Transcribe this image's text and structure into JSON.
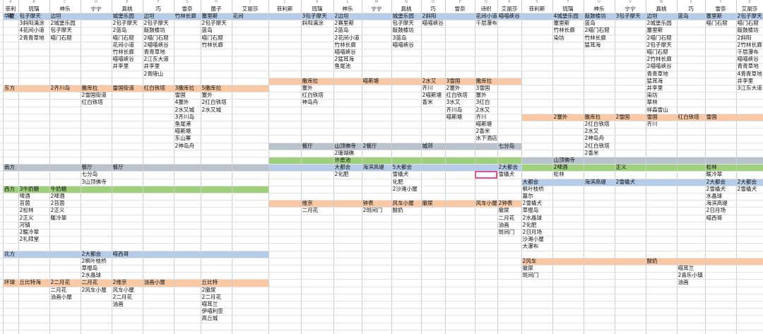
{
  "colors": {
    "blue": "#b6cdea",
    "orange": "#f8c9a4",
    "gray": "#b9c3cd",
    "green": "#9fd07c",
    "selection": "#e0559a"
  },
  "column_letters": [
    "A",
    "B",
    "C",
    "D",
    "E",
    "F",
    "G",
    "H",
    "I",
    "J",
    "K",
    "L",
    "M",
    "N",
    "O",
    "P",
    "Q",
    "R",
    "S",
    "T",
    "U",
    "V",
    "W",
    "X",
    "Y",
    "Z"
  ],
  "headers": [
    "菲利斯",
    "琉璃",
    "神乐",
    "宁宁",
    "真桃",
    "巧",
    "雪奈",
    "菌子",
    "艾丽莎",
    "菲利斯",
    "琉璃",
    "神乐",
    "宁宁",
    "真桃",
    "巧",
    "雪奈",
    "诗织",
    "艾丽莎",
    "菲利斯",
    "琉璃",
    "神乐",
    "宁宁",
    "真桃",
    "巧",
    "雪奈",
    "艾丽莎"
  ],
  "region_labels": [
    {
      "r": 1,
      "text": "华夏"
    },
    {
      "r": 11,
      "text": "东方"
    },
    {
      "r": 22,
      "text": "南方"
    },
    {
      "r": 25,
      "text": "西方"
    },
    {
      "r": 34,
      "text": "北方"
    },
    {
      "r": 38,
      "text": "环球"
    }
  ],
  "cells": [
    {
      "c": 1,
      "r": 1,
      "t": "包子摩天"
    },
    {
      "c": 2,
      "r": 1,
      "t": "边坦"
    },
    {
      "c": 4,
      "r": 1,
      "t": "城堡乐园"
    },
    {
      "c": 5,
      "r": 1,
      "t": "边坦"
    },
    {
      "c": 6,
      "r": 1,
      "t": "竹林长廊"
    },
    {
      "c": 7,
      "r": 1,
      "t": "塞里斯"
    },
    {
      "c": 8,
      "r": 1,
      "t": "花间"
    },
    {
      "c": 1,
      "r": 2,
      "t": "3斜阳漓涂"
    },
    {
      "c": 2,
      "r": 2,
      "t": "2城堡乐园"
    },
    {
      "c": 4,
      "r": 2,
      "t": "2包子摩天"
    },
    {
      "c": 5,
      "r": 2,
      "t": "2包子摩天"
    },
    {
      "c": 7,
      "r": 2,
      "t": "2包子摩天"
    },
    {
      "c": 1,
      "r": 3,
      "t": "4花间小道"
    },
    {
      "c": 2,
      "r": 3,
      "t": "包子摩天"
    },
    {
      "c": 4,
      "r": 3,
      "t": "2蓝岛"
    },
    {
      "c": 5,
      "r": 3,
      "t": "敲鼓楼坊"
    },
    {
      "c": 7,
      "r": 3,
      "t": "蓝岛"
    },
    {
      "c": 1,
      "r": 4,
      "t": "2青青草地"
    },
    {
      "c": 2,
      "r": 4,
      "t": "喵门石窟"
    },
    {
      "c": 4,
      "r": 4,
      "t": "喵门石窟"
    },
    {
      "c": 5,
      "r": 4,
      "t": "2喵门石窟"
    },
    {
      "c": 7,
      "r": 4,
      "t": "喵门石窟"
    },
    {
      "c": 4,
      "r": 5,
      "t": "花间小道"
    },
    {
      "c": 5,
      "r": 5,
      "t": "2喵喵峡谷"
    },
    {
      "c": 7,
      "r": 5,
      "t": "竹林长廊"
    },
    {
      "c": 4,
      "r": 6,
      "t": "竹林长廊"
    },
    {
      "c": 5,
      "r": 6,
      "t": "青青草地"
    },
    {
      "c": 4,
      "r": 7,
      "t": "喵喵峡谷"
    },
    {
      "c": 5,
      "r": 7,
      "t": "2江东大道"
    },
    {
      "c": 4,
      "r": 8,
      "t": "井李里"
    },
    {
      "c": 5,
      "r": 8,
      "t": "井李里"
    },
    {
      "c": 5,
      "r": 9,
      "t": "2青陵山"
    },
    {
      "c": 2,
      "r": 11,
      "t": "2齐川岛"
    },
    {
      "c": 3,
      "r": 11,
      "t": "撒库拉"
    },
    {
      "c": 4,
      "r": 11,
      "t": "雷国街道"
    },
    {
      "c": 5,
      "r": 11,
      "t": "红白铁塔"
    },
    {
      "c": 6,
      "r": 11,
      "t": "3撒库拉"
    },
    {
      "c": 7,
      "r": 11,
      "t": "5撒库拉"
    },
    {
      "c": 3,
      "r": 12,
      "t": "2雪国街道"
    },
    {
      "c": 6,
      "r": 12,
      "t": "雪国"
    },
    {
      "c": 7,
      "r": 12,
      "t": "塞外"
    },
    {
      "c": 3,
      "r": 13,
      "t": "红白铁塔"
    },
    {
      "c": 6,
      "r": 13,
      "t": "4塞外"
    },
    {
      "c": 7,
      "r": 13,
      "t": "2红白铁塔"
    },
    {
      "c": 6,
      "r": 14,
      "t": "2水又城"
    },
    {
      "c": 7,
      "r": 14,
      "t": "2水又城"
    },
    {
      "c": 6,
      "r": 15,
      "t": "3齐川岛"
    },
    {
      "c": 6,
      "r": 16,
      "t": "鱼尾港"
    },
    {
      "c": 6,
      "r": 17,
      "t": "喵斯塘"
    },
    {
      "c": 6,
      "r": 18,
      "t": "东山寨"
    },
    {
      "c": 6,
      "r": 19,
      "t": "2神岛舟"
    },
    {
      "c": 3,
      "r": 22,
      "t": "餐厅"
    },
    {
      "c": 4,
      "r": 22,
      "t": "餐厅"
    },
    {
      "c": 3,
      "r": 23,
      "t": "七分岛"
    },
    {
      "c": 3,
      "r": 24,
      "t": "3山顶佛寺"
    },
    {
      "c": 1,
      "r": 25,
      "t": "3牛奶糖"
    },
    {
      "c": 2,
      "r": 25,
      "t": "牛奶糖"
    },
    {
      "c": 1,
      "r": 26,
      "t": "啤酒"
    },
    {
      "c": 2,
      "r": 26,
      "t": "2啤酒"
    },
    {
      "c": 1,
      "r": 27,
      "t": "苔茵"
    },
    {
      "c": 2,
      "r": 27,
      "t": "2苔茵"
    },
    {
      "c": 1,
      "r": 28,
      "t": "2松林"
    },
    {
      "c": 2,
      "r": 28,
      "t": "2正义"
    },
    {
      "c": 1,
      "r": 29,
      "t": "2正义"
    },
    {
      "c": 2,
      "r": 29,
      "t": "暖冷翠"
    },
    {
      "c": 1,
      "r": 30,
      "t": "河镇"
    },
    {
      "c": 1,
      "r": 31,
      "t": "2暖冷翠"
    },
    {
      "c": 1,
      "r": 32,
      "t": "2礼拜堂"
    },
    {
      "c": 3,
      "r": 34,
      "t": "2大都会"
    },
    {
      "c": 4,
      "r": 34,
      "t": "喵西哥"
    },
    {
      "c": 3,
      "r": 35,
      "t": "2枫叶枝桥"
    },
    {
      "c": 3,
      "r": 36,
      "t": "草棍岛"
    },
    {
      "c": 3,
      "r": 37,
      "t": "2水晶球"
    },
    {
      "c": 1,
      "r": 38,
      "t": "丘比特海"
    },
    {
      "c": 2,
      "r": 38,
      "t": "2二月花"
    },
    {
      "c": 3,
      "r": 38,
      "t": "二月花"
    },
    {
      "c": 4,
      "r": 38,
      "t": "2维京"
    },
    {
      "c": 5,
      "r": 38,
      "t": "油画小屋"
    },
    {
      "c": 7,
      "r": 38,
      "t": "丘比特"
    },
    {
      "c": 2,
      "r": 39,
      "t": "二月花"
    },
    {
      "c": 3,
      "r": 39,
      "t": "2风车小屋"
    },
    {
      "c": 4,
      "r": 39,
      "t": "风车小屋"
    },
    {
      "c": 7,
      "r": 39,
      "t": "2撤尿"
    },
    {
      "c": 2,
      "r": 40,
      "t": "油画小屋"
    },
    {
      "c": 4,
      "r": 40,
      "t": "2二月花"
    },
    {
      "c": 7,
      "r": 40,
      "t": "2二月花"
    },
    {
      "c": 4,
      "r": 41,
      "t": "油画"
    },
    {
      "c": 7,
      "r": 41,
      "t": "喵耳兰"
    },
    {
      "c": 7,
      "r": 42,
      "t": "伊喵利亚"
    },
    {
      "c": 7,
      "r": 43,
      "t": "高丘城"
    },
    {
      "c": 10,
      "r": 1,
      "t": "3包子摩天"
    },
    {
      "c": 11,
      "r": 1,
      "t": "2边坦"
    },
    {
      "c": 13,
      "r": 1,
      "t": "城堡乐园"
    },
    {
      "c": 14,
      "r": 1,
      "t": "2斜阳"
    },
    {
      "c": 16,
      "r": 1,
      "t": "花间小道"
    },
    {
      "c": 17,
      "r": 1,
      "t": "喵喵峡谷"
    },
    {
      "c": 10,
      "r": 2,
      "t": "斜阳漓涂"
    },
    {
      "c": 11,
      "r": 2,
      "t": "2赛里斯"
    },
    {
      "c": 13,
      "r": 2,
      "t": "包子摩天"
    },
    {
      "c": 14,
      "r": 2,
      "t": "喵喵峡谷"
    },
    {
      "c": 16,
      "r": 2,
      "t": "千层瀑布"
    },
    {
      "c": 11,
      "r": 3,
      "t": "2蓝岛"
    },
    {
      "c": 13,
      "r": 3,
      "t": "敲鼓楼坊"
    },
    {
      "c": 11,
      "r": 4,
      "t": "2花间小道"
    },
    {
      "c": 13,
      "r": 4,
      "t": "3蓝岛"
    },
    {
      "c": 11,
      "r": 5,
      "t": "竹林长廊"
    },
    {
      "c": 13,
      "r": 5,
      "t": "喵喵峡谷"
    },
    {
      "c": 11,
      "r": 6,
      "t": "喵喵峡谷"
    },
    {
      "c": 11,
      "r": 7,
      "t": "2猛耳海"
    },
    {
      "c": 11,
      "r": 8,
      "t": "鱼尾池"
    },
    {
      "c": 10,
      "r": 10,
      "t": "撒库拉"
    },
    {
      "c": 12,
      "r": 10,
      "t": "喵斯塘"
    },
    {
      "c": 14,
      "r": 10,
      "t": "2水又"
    },
    {
      "c": 15,
      "r": 10,
      "t": "3雪国"
    },
    {
      "c": 16,
      "r": 10,
      "t": "撒库拉"
    },
    {
      "c": 10,
      "r": 11,
      "t": "塞外"
    },
    {
      "c": 14,
      "r": 11,
      "t": "齐川"
    },
    {
      "c": 15,
      "r": 11,
      "t": "2塞外"
    },
    {
      "c": 16,
      "r": 11,
      "t": "3雪国"
    },
    {
      "c": 10,
      "r": 12,
      "t": "红白铁塔"
    },
    {
      "c": 14,
      "r": 12,
      "t": "2喵斯塘"
    },
    {
      "c": 15,
      "r": 12,
      "t": "红白铁塔"
    },
    {
      "c": 16,
      "r": 12,
      "t": "塞外"
    },
    {
      "c": 10,
      "r": 13,
      "t": "神岛舟"
    },
    {
      "c": 14,
      "r": 13,
      "t": "香米"
    },
    {
      "c": 15,
      "r": 13,
      "t": "3水又"
    },
    {
      "c": 16,
      "r": 13,
      "t": "3红白"
    },
    {
      "c": 15,
      "r": 14,
      "t": "齐川岛"
    },
    {
      "c": 16,
      "r": 14,
      "t": "2水又"
    },
    {
      "c": 15,
      "r": 15,
      "t": "喵斯塘"
    },
    {
      "c": 16,
      "r": 15,
      "t": "齐川"
    },
    {
      "c": 16,
      "r": 16,
      "t": "喵斯塘"
    },
    {
      "c": 16,
      "r": 17,
      "t": "2香米"
    },
    {
      "c": 16,
      "r": 18,
      "t": "水下酒店"
    },
    {
      "c": 10,
      "r": 19,
      "t": "餐厅"
    },
    {
      "c": 11,
      "r": 19,
      "t": "山顶佛寺"
    },
    {
      "c": 12,
      "r": 19,
      "t": "2餐厅"
    },
    {
      "c": 14,
      "r": 19,
      "t": "城郊"
    },
    {
      "c": 17,
      "r": 19,
      "t": "七分岛"
    },
    {
      "c": 11,
      "r": 20,
      "t": "2珊瑚礁"
    },
    {
      "c": 11,
      "r": 21,
      "t": "许愿池"
    },
    {
      "c": 11,
      "r": 22,
      "t": "大都会"
    },
    {
      "c": 12,
      "r": 22,
      "t": "海滨高堤"
    },
    {
      "c": 13,
      "r": 22,
      "t": "5大都会"
    },
    {
      "c": 17,
      "r": 22,
      "t": "2大都会"
    },
    {
      "c": 11,
      "r": 23,
      "t": "2化肥"
    },
    {
      "c": 13,
      "r": 23,
      "t": "雪橇犬"
    },
    {
      "c": 17,
      "r": 23,
      "t": "雪橇犬"
    },
    {
      "c": 13,
      "r": 24,
      "t": "化肥"
    },
    {
      "c": 13,
      "r": 25,
      "t": "2沙滩小屋"
    },
    {
      "c": 10,
      "r": 27,
      "t": "维京"
    },
    {
      "c": 12,
      "r": 27,
      "t": "钟表"
    },
    {
      "c": 13,
      "r": 27,
      "t": "风车小屋"
    },
    {
      "c": 14,
      "r": 27,
      "t": "撤尿"
    },
    {
      "c": 16,
      "r": 27,
      "t": "风车小屋"
    },
    {
      "c": 17,
      "r": 27,
      "t": "2钟表"
    },
    {
      "c": 10,
      "r": 28,
      "t": "二月花"
    },
    {
      "c": 12,
      "r": 28,
      "t": "2斑间门"
    },
    {
      "c": 13,
      "r": 28,
      "t": "酸奶"
    },
    {
      "c": 17,
      "r": 28,
      "t": "撤尿"
    },
    {
      "c": 17,
      "r": 29,
      "t": "二月花"
    },
    {
      "c": 17,
      "r": 30,
      "t": "油画"
    },
    {
      "c": 17,
      "r": 31,
      "t": "斑间门"
    },
    {
      "c": 19,
      "r": 1,
      "t": "4城堡乐园"
    },
    {
      "c": 20,
      "r": 1,
      "t": "敲鼓楼坊"
    },
    {
      "c": 21,
      "r": 1,
      "t": "3包子摩天"
    },
    {
      "c": 22,
      "r": 1,
      "t": "边坦"
    },
    {
      "c": 23,
      "r": 1,
      "t": "蓝岛"
    },
    {
      "c": 24,
      "r": 1,
      "t": "塞里斯"
    },
    {
      "c": 25,
      "r": 1,
      "t": "2包子摩天"
    },
    {
      "c": 19,
      "r": 2,
      "t": "塞里斯"
    },
    {
      "c": 20,
      "r": 2,
      "t": "蓝岛"
    },
    {
      "c": 22,
      "r": 2,
      "t": "2城堡乐园"
    },
    {
      "c": 24,
      "r": 2,
      "t": "喵门石窟"
    },
    {
      "c": 25,
      "r": 2,
      "t": "喵门石窟"
    },
    {
      "c": 19,
      "r": 3,
      "t": "竹林长廊"
    },
    {
      "c": 20,
      "r": 3,
      "t": "2喵门石窟"
    },
    {
      "c": 22,
      "r": 3,
      "t": "塞里斯"
    },
    {
      "c": 25,
      "r": 3,
      "t": "敲鼓楼坊"
    },
    {
      "c": 19,
      "r": 4,
      "t": "染坊"
    },
    {
      "c": 20,
      "r": 4,
      "t": "竹林长廊"
    },
    {
      "c": 22,
      "r": 4,
      "t": "2喵门石窟"
    },
    {
      "c": 25,
      "r": 4,
      "t": "2斜阳"
    },
    {
      "c": 20,
      "r": 5,
      "t": "猛耳海"
    },
    {
      "c": 22,
      "r": 5,
      "t": "2包子摩天"
    },
    {
      "c": 25,
      "r": 5,
      "t": "2竹林长廊"
    },
    {
      "c": 22,
      "r": 6,
      "t": "喵门石窟"
    },
    {
      "c": 25,
      "r": 6,
      "t": "千层瀑布"
    },
    {
      "c": 22,
      "r": 7,
      "t": "2竹林长廊"
    },
    {
      "c": 25,
      "r": 7,
      "t": "喵喵峡谷"
    },
    {
      "c": 22,
      "r": 8,
      "t": "2喵喵峡谷"
    },
    {
      "c": 25,
      "r": 8,
      "t": "青青草地"
    },
    {
      "c": 22,
      "r": 9,
      "t": "青青草地"
    },
    {
      "c": 25,
      "r": 9,
      "t": "4青青草地"
    },
    {
      "c": 22,
      "r": 10,
      "t": "猛耳海"
    },
    {
      "c": 25,
      "r": 10,
      "t": "井李里"
    },
    {
      "c": 22,
      "r": 11,
      "t": "井李里"
    },
    {
      "c": 25,
      "r": 11,
      "t": "3江东大道"
    },
    {
      "c": 22,
      "r": 12,
      "t": "染坊"
    },
    {
      "c": 22,
      "r": 13,
      "t": "翠林"
    },
    {
      "c": 22,
      "r": 14,
      "t": "祥森雪山"
    },
    {
      "c": 19,
      "r": 15,
      "t": "2塞外"
    },
    {
      "c": 20,
      "r": 15,
      "t": "撒库拉"
    },
    {
      "c": 21,
      "r": 15,
      "t": "2雪国"
    },
    {
      "c": 22,
      "r": 15,
      "t": "雪国"
    },
    {
      "c": 23,
      "r": 15,
      "t": "红白铁塔"
    },
    {
      "c": 24,
      "r": 15,
      "t": "雪国"
    },
    {
      "c": 20,
      "r": 16,
      "t": "2红白铁塔"
    },
    {
      "c": 22,
      "r": 16,
      "t": "齐川"
    },
    {
      "c": 20,
      "r": 17,
      "t": "2水又"
    },
    {
      "c": 20,
      "r": 18,
      "t": "2神岛舟"
    },
    {
      "c": 20,
      "r": 19,
      "t": "2红白铁塔"
    },
    {
      "c": 20,
      "r": 20,
      "t": "2香米"
    },
    {
      "c": 19,
      "r": 21,
      "t": "山顶佛寺"
    },
    {
      "c": 19,
      "r": 22,
      "t": "2啤酒"
    },
    {
      "c": 21,
      "r": 22,
      "t": "正义"
    },
    {
      "c": 24,
      "r": 22,
      "t": "松林"
    },
    {
      "c": 19,
      "r": 23,
      "t": "松林"
    },
    {
      "c": 24,
      "r": 23,
      "t": "暖冷翠"
    },
    {
      "c": 18,
      "r": 24,
      "t": "大都会"
    },
    {
      "c": 20,
      "r": 24,
      "t": "海滨高堤"
    },
    {
      "c": 21,
      "r": 24,
      "t": "2雪橇犬"
    },
    {
      "c": 24,
      "r": 24,
      "t": "2大都会"
    },
    {
      "c": 25,
      "r": 24,
      "t": "2大都会"
    },
    {
      "c": 18,
      "r": 25,
      "t": "枫叶枝桥"
    },
    {
      "c": 24,
      "r": 25,
      "t": "2雪橇犬"
    },
    {
      "c": 25,
      "r": 25,
      "t": "2雪橇犬"
    },
    {
      "c": 18,
      "r": 26,
      "t": "墓尔"
    },
    {
      "c": 24,
      "r": 26,
      "t": "水晶球"
    },
    {
      "c": 18,
      "r": 27,
      "t": "2雪橇犬"
    },
    {
      "c": 24,
      "r": 27,
      "t": "海滨高堤"
    },
    {
      "c": 18,
      "r": 28,
      "t": "草棍岛"
    },
    {
      "c": 24,
      "r": 28,
      "t": "2日月场"
    },
    {
      "c": 18,
      "r": 29,
      "t": "2水晶球"
    },
    {
      "c": 24,
      "r": 29,
      "t": "喵西哥"
    },
    {
      "c": 18,
      "r": 30,
      "t": "2化肥"
    },
    {
      "c": 18,
      "r": 31,
      "t": "2日月场"
    },
    {
      "c": 18,
      "r": 32,
      "t": "沙滩小屋"
    },
    {
      "c": 18,
      "r": 33,
      "t": "大瀑布"
    },
    {
      "c": 18,
      "r": 35,
      "t": "2风车"
    },
    {
      "c": 22,
      "r": 35,
      "t": "酸奶"
    },
    {
      "c": 18,
      "r": 36,
      "t": "撤尿"
    },
    {
      "c": 23,
      "r": 36,
      "t": "喵耳兰"
    },
    {
      "c": 18,
      "r": 37,
      "t": "斑间门"
    },
    {
      "c": 23,
      "r": 37,
      "t": "2喜乐小镇"
    },
    {
      "c": 23,
      "r": 38,
      "t": "油画"
    }
  ]
}
